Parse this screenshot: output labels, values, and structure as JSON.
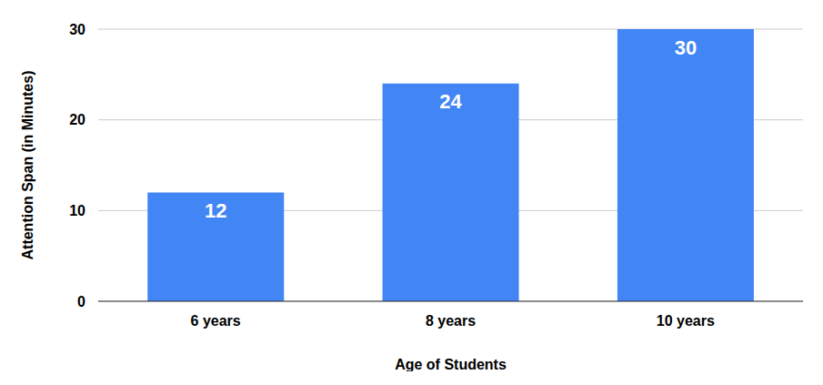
{
  "chart_data": {
    "type": "bar",
    "categories": [
      "6 years",
      "8 years",
      "10 years"
    ],
    "values": [
      12,
      24,
      30
    ],
    "color": "#4285f4",
    "x_label": "Age of Students",
    "y_label": "Attention Span (in Minutes)",
    "ylim": [
      0,
      30
    ],
    "yticks": [
      0,
      10,
      20,
      30
    ],
    "grid": true,
    "data_labels": true
  }
}
